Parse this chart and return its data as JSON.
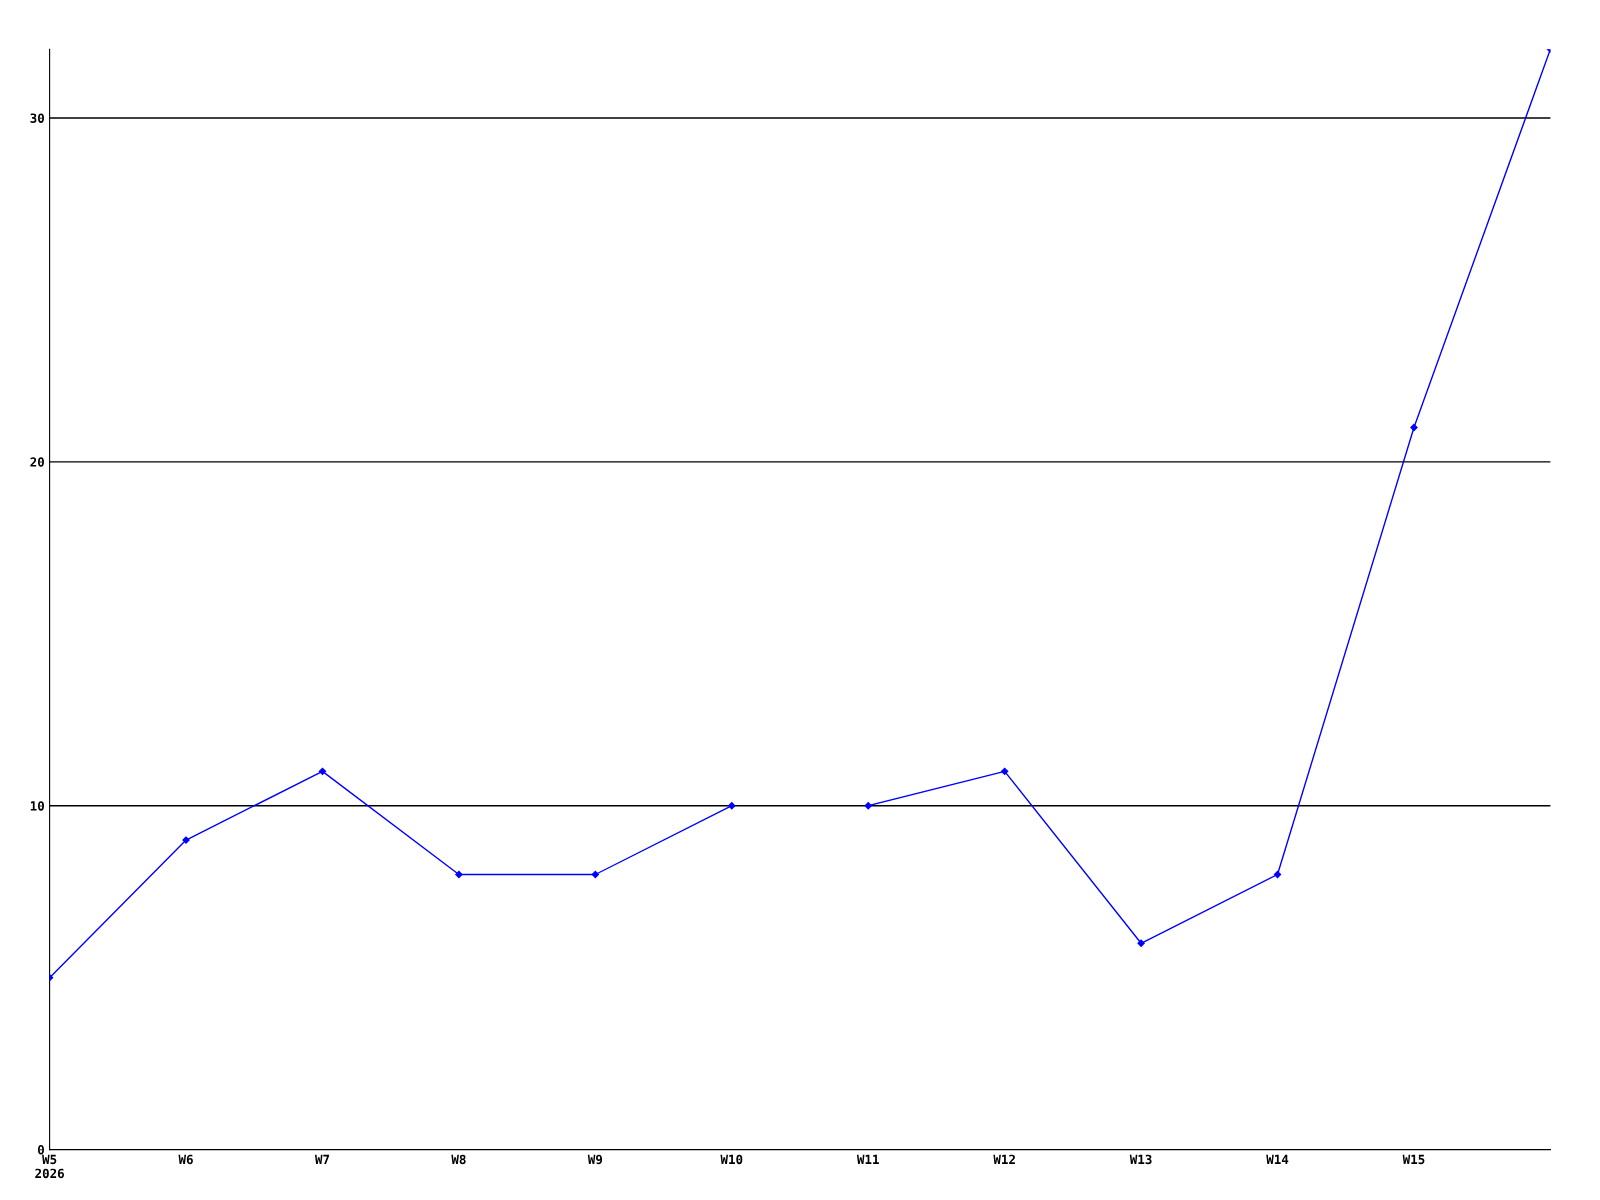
{
  "chart_data": {
    "type": "line",
    "categories": [
      "W5\n2026",
      "W6",
      "W7",
      "W8",
      "W9",
      "W10",
      "W11",
      "W12",
      "W13",
      "W14",
      "W15",
      null
    ],
    "series": [
      {
        "color": "#0000ff",
        "values": [
          5,
          9,
          11,
          8,
          8,
          10,
          null,
          null,
          null,
          null,
          null,
          null
        ]
      },
      {
        "color": "#0000ff",
        "values": [
          null,
          null,
          null,
          null,
          null,
          null,
          10,
          11,
          6,
          8,
          21,
          32
        ]
      }
    ],
    "ylim": [
      0,
      32
    ],
    "yticks": [
      0,
      10,
      20,
      30
    ],
    "grid": "y",
    "marker": "diamond",
    "line_style": "solid",
    "legend": false
  }
}
